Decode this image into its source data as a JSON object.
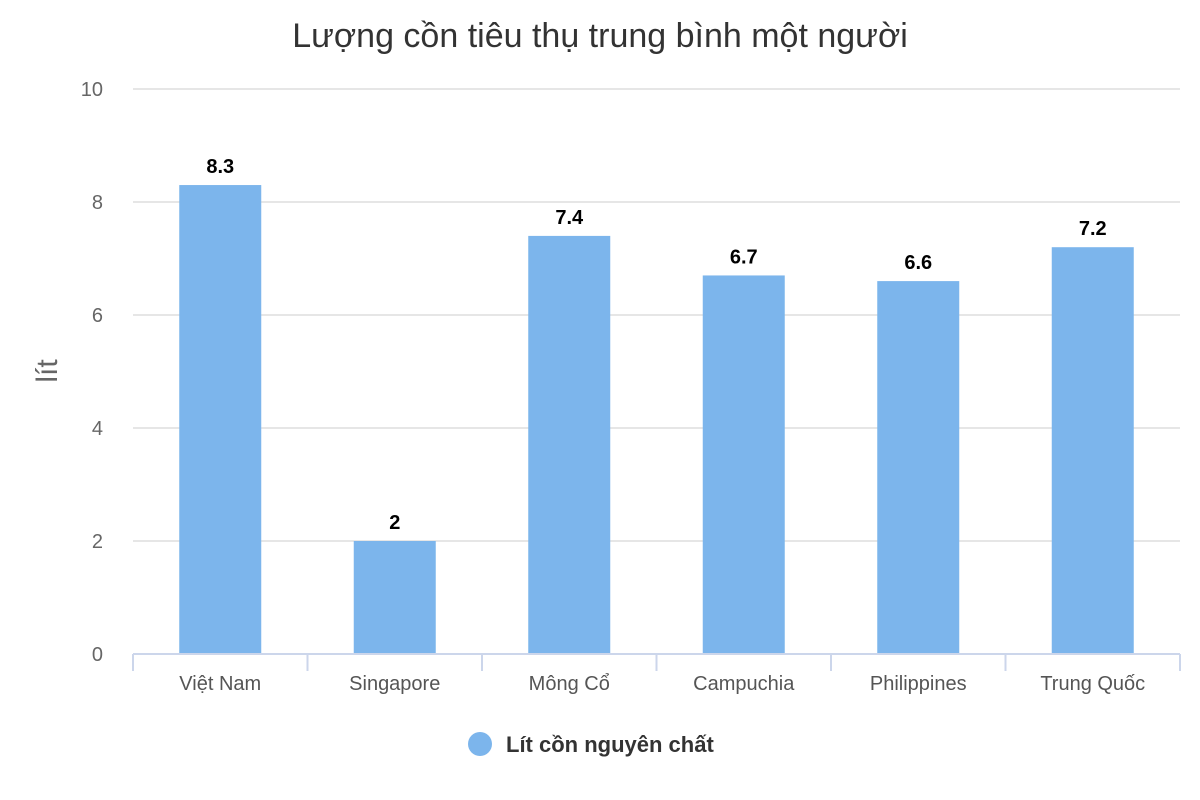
{
  "chart_data": {
    "type": "bar",
    "title": "Lượng cồn tiêu thụ trung bình một người",
    "ylabel": "lít",
    "xlabel": "",
    "categories": [
      "Việt Nam",
      "Singapore",
      "Mông Cổ",
      "Campuchia",
      "Philippines",
      "Trung Quốc"
    ],
    "series": [
      {
        "name": "Lít cồn nguyên chất",
        "values": [
          8.3,
          2,
          7.4,
          6.7,
          6.6,
          7.2
        ],
        "color": "#7cb5ec"
      }
    ],
    "ylim": [
      0,
      10
    ],
    "yticks": [
      0,
      2,
      4,
      6,
      8,
      10
    ],
    "grid": true,
    "data_labels": true,
    "legend": "bottom-center"
  }
}
